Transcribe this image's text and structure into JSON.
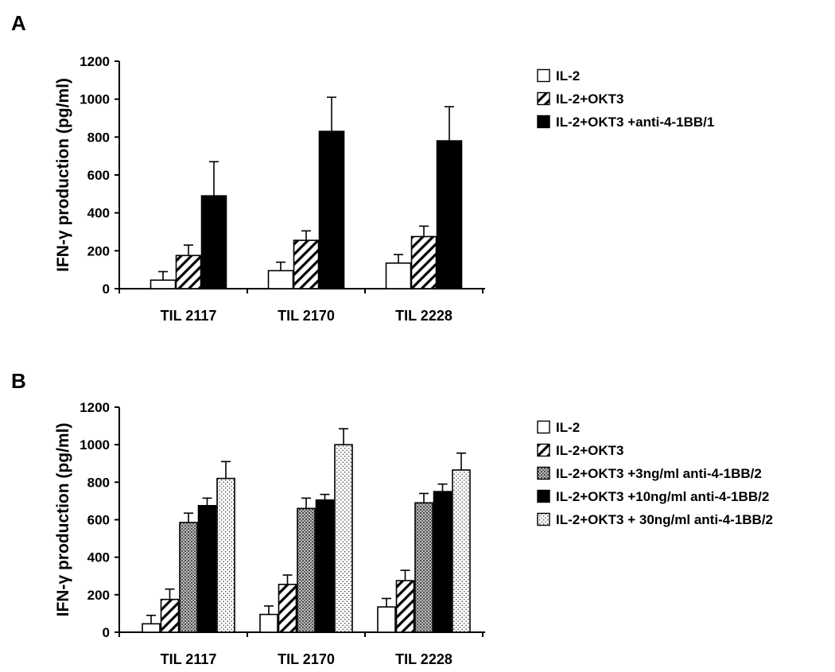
{
  "chart_data": [
    {
      "panel_label": "A",
      "type": "bar",
      "ylabel": "IFN-γ production (pg/ml)",
      "xlabel": "",
      "ylim": [
        0,
        1200
      ],
      "yticks": [
        "0",
        "200",
        "400",
        "600",
        "800",
        "1000",
        "1200"
      ],
      "categories": [
        "TIL 2117",
        "TIL 2170",
        "TIL 2228"
      ],
      "legend_position": "right",
      "series": [
        {
          "name": "IL-2",
          "pattern": "white",
          "values": [
            45,
            95,
            135
          ],
          "errors": [
            45,
            45,
            45
          ]
        },
        {
          "name": "IL-2+OKT3",
          "pattern": "hatch",
          "values": [
            175,
            255,
            275
          ],
          "errors": [
            55,
            50,
            55
          ]
        },
        {
          "name": "IL-2+OKT3 +anti-4-1BB/1",
          "pattern": "black",
          "values": [
            490,
            830,
            780
          ],
          "errors": [
            180,
            180,
            180
          ]
        }
      ]
    },
    {
      "panel_label": "B",
      "type": "bar",
      "ylabel": "IFN-γ production (pg/ml)",
      "xlabel": "",
      "ylim": [
        0,
        1200
      ],
      "yticks": [
        "0",
        "200",
        "400",
        "600",
        "800",
        "1000",
        "1200"
      ],
      "categories": [
        "TIL 2117",
        "TIL 2170",
        "TIL 2228"
      ],
      "legend_position": "right",
      "series": [
        {
          "name": "IL-2",
          "pattern": "white",
          "values": [
            45,
            95,
            135
          ],
          "errors": [
            45,
            45,
            45
          ]
        },
        {
          "name": "IL-2+OKT3",
          "pattern": "hatch",
          "values": [
            175,
            255,
            275
          ],
          "errors": [
            55,
            50,
            55
          ]
        },
        {
          "name": "IL-2+OKT3 +3ng/ml anti-4-1BB/2",
          "pattern": "grid",
          "values": [
            585,
            660,
            690
          ],
          "errors": [
            50,
            55,
            50
          ]
        },
        {
          "name": "IL-2+OKT3 +10ng/ml anti-4-1BB/2",
          "pattern": "black",
          "values": [
            675,
            705,
            750
          ],
          "errors": [
            40,
            30,
            40
          ]
        },
        {
          "name": "IL-2+OKT3 + 30ng/ml anti-4-1BB/2",
          "pattern": "dots",
          "values": [
            820,
            1000,
            865
          ],
          "errors": [
            90,
            85,
            90
          ]
        }
      ]
    }
  ]
}
